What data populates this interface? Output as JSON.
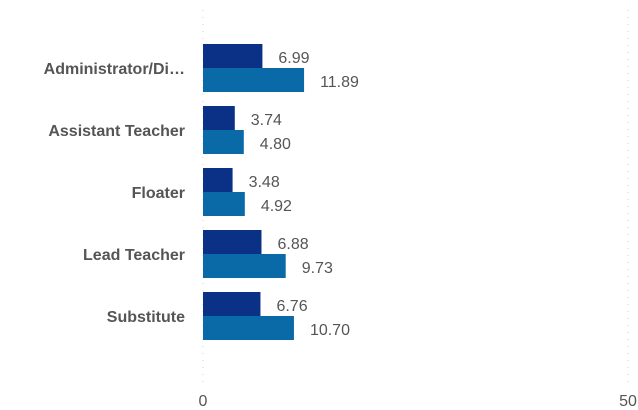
{
  "chart_data": {
    "type": "bar",
    "orientation": "horizontal",
    "categories": [
      "Administrator/Di…",
      "Assistant Teacher",
      "Floater",
      "Lead Teacher",
      "Substitute"
    ],
    "series": [
      {
        "values": [
          6.99,
          3.74,
          3.48,
          6.88,
          6.76
        ],
        "labels": [
          "6.99",
          "3.74",
          "3.48",
          "6.88",
          "6.76"
        ],
        "color": "#0a3185"
      },
      {
        "values": [
          11.89,
          4.8,
          4.92,
          9.73,
          10.7
        ],
        "labels": [
          "11.89",
          "4.80",
          "4.92",
          "9.73",
          "10.70"
        ],
        "color": "#0a6aa8"
      }
    ],
    "xlim": [
      0,
      50
    ],
    "x_ticks": [
      "0",
      "50"
    ],
    "grid": true,
    "legend": "none"
  }
}
